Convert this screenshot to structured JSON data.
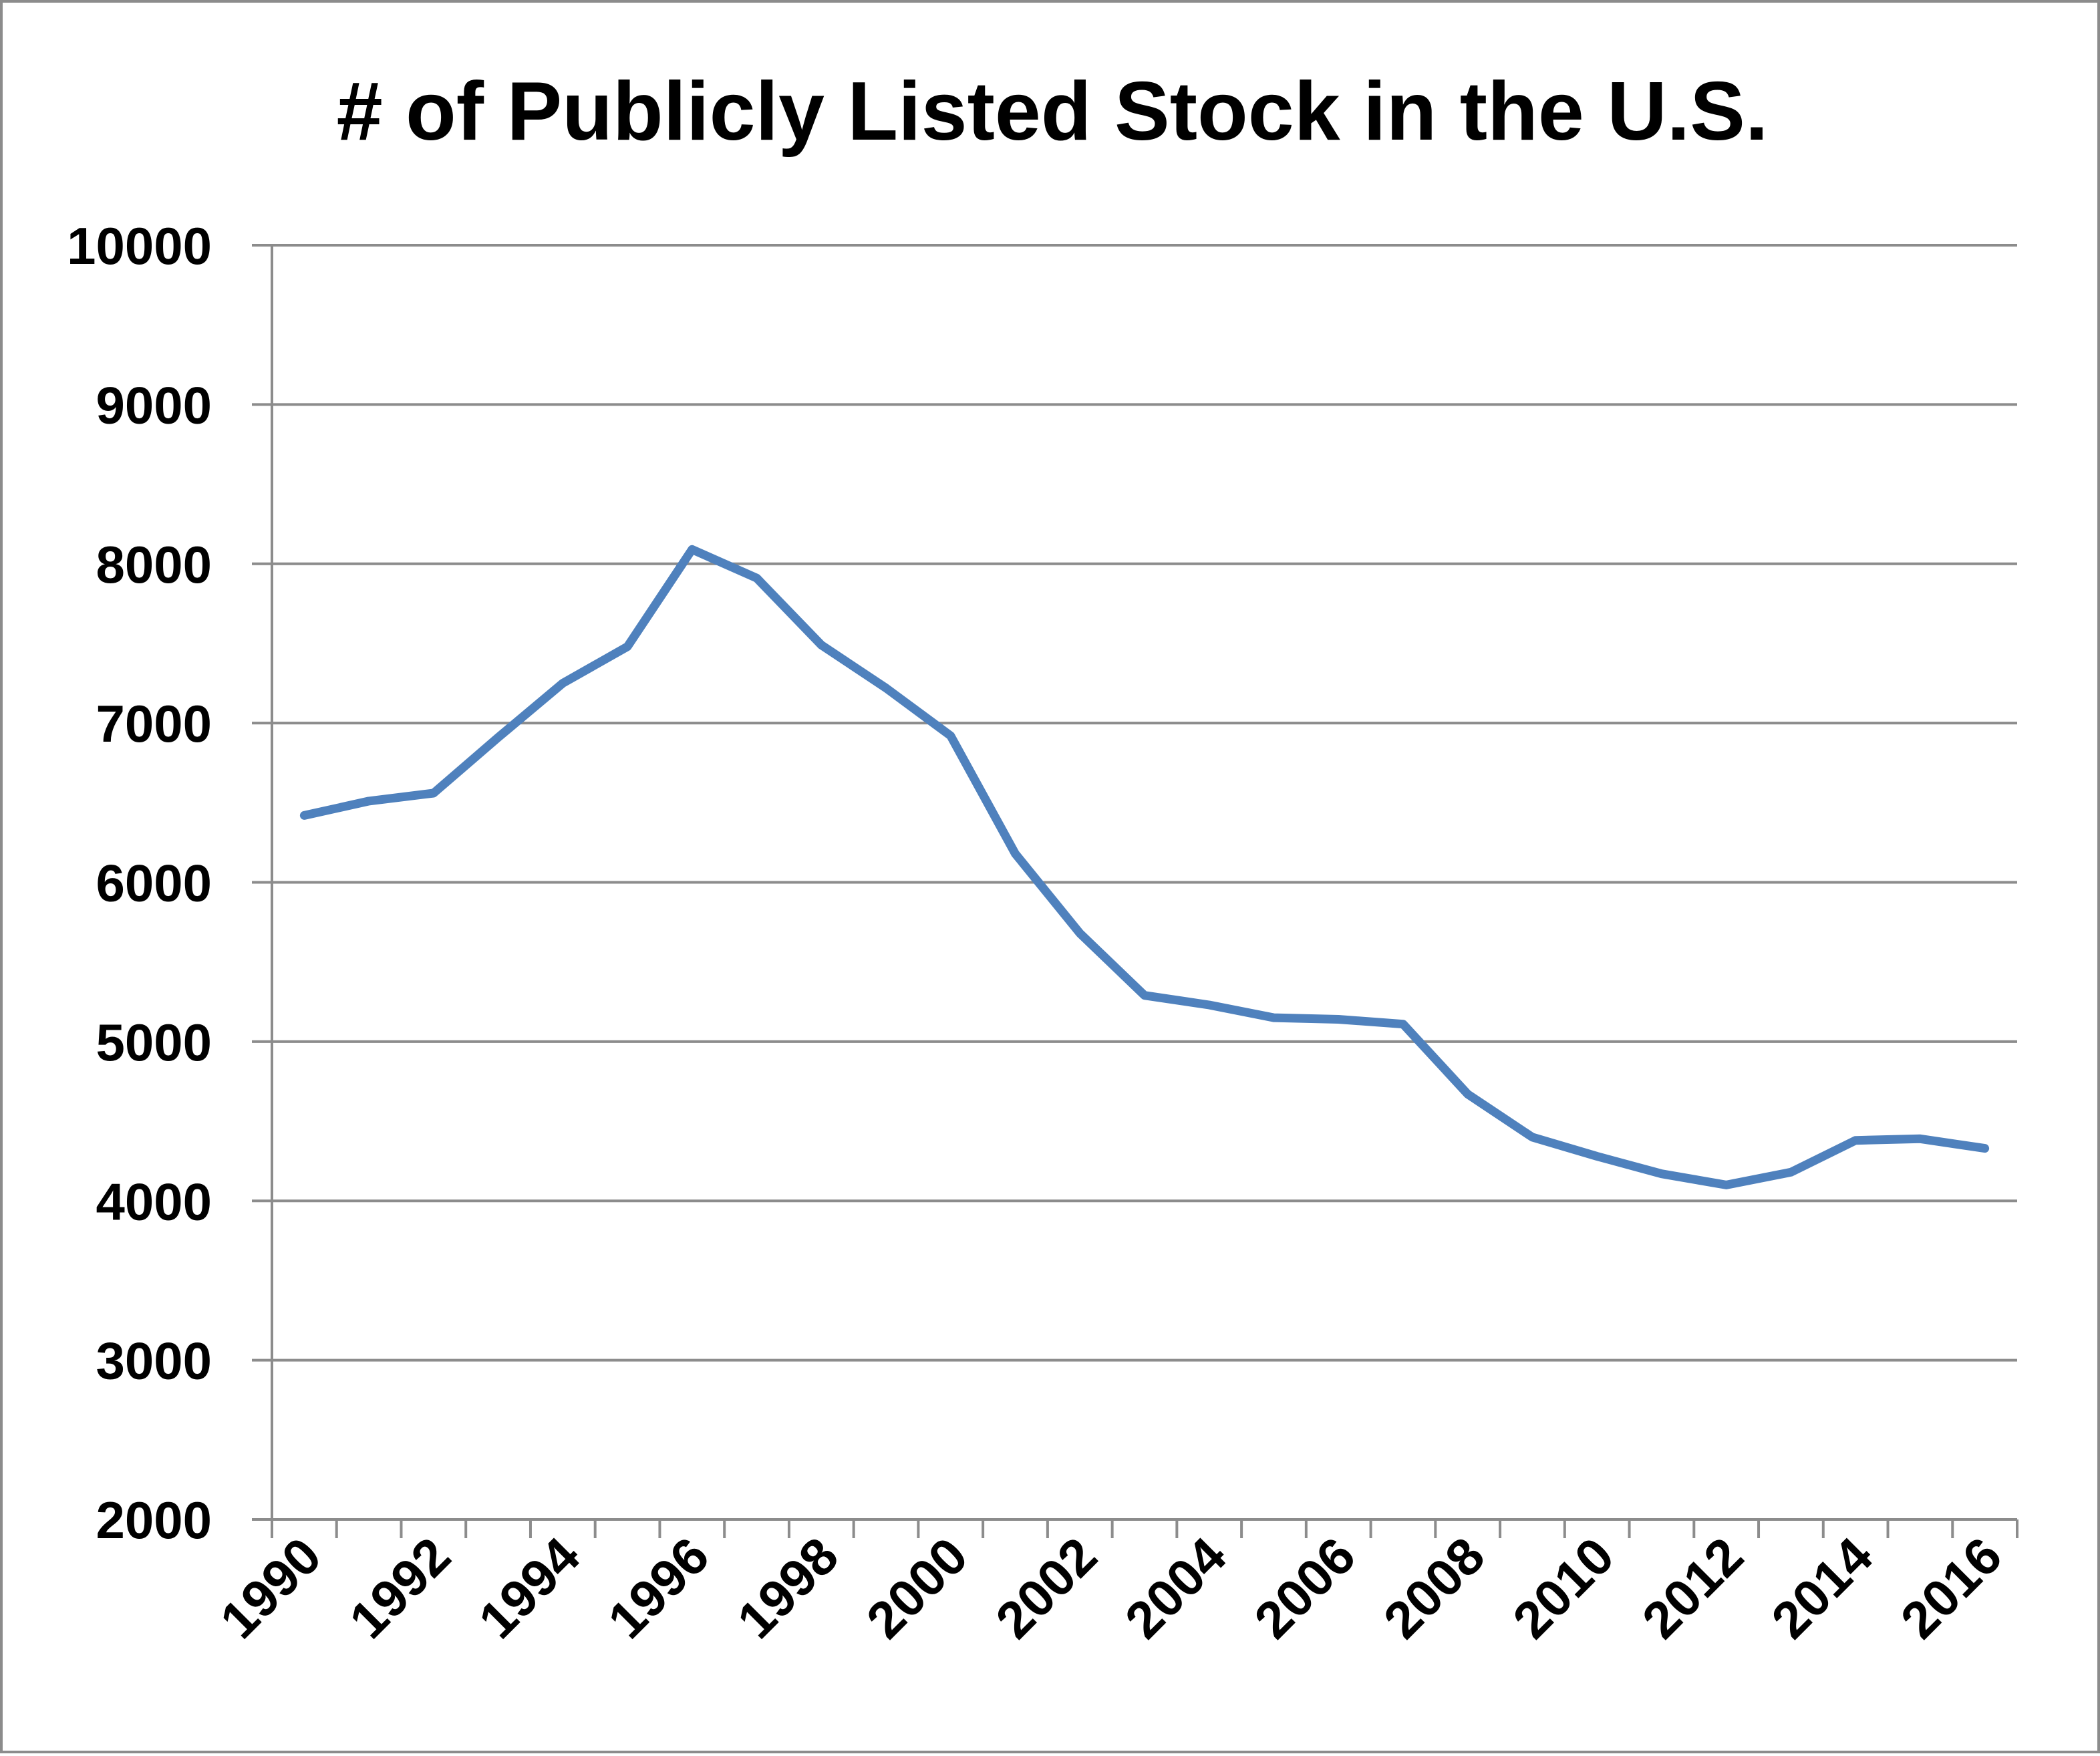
{
  "chart_data": {
    "type": "line",
    "title": "# of Publicly Listed Stock in the U.S.",
    "xlabel": "",
    "ylabel": "",
    "x": [
      1990,
      1991,
      1992,
      1993,
      1994,
      1995,
      1996,
      1997,
      1998,
      1999,
      2000,
      2001,
      2002,
      2003,
      2004,
      2005,
      2006,
      2007,
      2008,
      2009,
      2010,
      2011,
      2012,
      2013,
      2014,
      2015,
      2016
    ],
    "x_tick_labels": [
      "1990",
      "1992",
      "1994",
      "1996",
      "1998",
      "2000",
      "2002",
      "2004",
      "2006",
      "2008",
      "2010",
      "2012",
      "2014",
      "2016"
    ],
    "ylim": [
      2000,
      10000
    ],
    "y_ticks": [
      2000,
      3000,
      4000,
      5000,
      6000,
      7000,
      8000,
      9000,
      10000
    ],
    "y_tick_labels": [
      "2000",
      "3000",
      "4000",
      "5000",
      "6000",
      "7000",
      "8000",
      "9000",
      "10000"
    ],
    "grid": true,
    "legend": "none",
    "series": [
      {
        "color": "#4f81bd",
        "values": [
          6420,
          6510,
          6560,
          6910,
          7250,
          7480,
          8090,
          7910,
          7490,
          7220,
          6920,
          6180,
          5680,
          5290,
          5230,
          5150,
          5140,
          5110,
          4670,
          4400,
          4280,
          4170,
          4100,
          4180,
          4380,
          4390,
          4330
        ]
      }
    ]
  }
}
